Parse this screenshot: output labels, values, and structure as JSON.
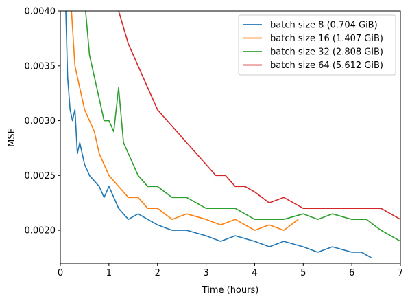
{
  "chart_data": {
    "type": "line",
    "title": "",
    "xlabel": "Time (hours)",
    "ylabel": "MSE",
    "xlim": [
      0,
      7
    ],
    "ylim": [
      0.0017,
      0.004
    ],
    "xticks": [
      0,
      1,
      2,
      3,
      4,
      5,
      6,
      7
    ],
    "xtick_labels": [
      "0",
      "1",
      "2",
      "3",
      "4",
      "5",
      "6",
      "7"
    ],
    "yticks": [
      0.002,
      0.0025,
      0.003,
      0.0035,
      0.004
    ],
    "ytick_labels": [
      "0.0020",
      "0.0025",
      "0.0030",
      "0.0035",
      "0.0040"
    ],
    "grid": false,
    "legend_position": "top-right",
    "series": [
      {
        "name": "batch size 8 (0.704 GiB)",
        "color": "#1f77b4",
        "x": [
          0.1,
          0.15,
          0.2,
          0.25,
          0.3,
          0.35,
          0.4,
          0.5,
          0.6,
          0.7,
          0.8,
          0.9,
          1.0,
          1.2,
          1.4,
          1.6,
          1.8,
          2.0,
          2.3,
          2.6,
          3.0,
          3.3,
          3.6,
          4.0,
          4.3,
          4.6,
          5.0,
          5.3,
          5.6,
          6.0,
          6.2,
          6.4
        ],
        "y": [
          0.0042,
          0.0034,
          0.0031,
          0.003,
          0.0031,
          0.0027,
          0.0028,
          0.0026,
          0.0025,
          0.00245,
          0.0024,
          0.0023,
          0.0024,
          0.0022,
          0.0021,
          0.00215,
          0.0021,
          0.00205,
          0.002,
          0.002,
          0.00195,
          0.0019,
          0.00195,
          0.0019,
          0.00185,
          0.0019,
          0.00185,
          0.0018,
          0.00185,
          0.0018,
          0.0018,
          0.00175
        ]
      },
      {
        "name": "batch size 16 (1.407 GiB)",
        "color": "#ff7f0e",
        "x": [
          0.2,
          0.3,
          0.4,
          0.5,
          0.6,
          0.7,
          0.8,
          0.9,
          1.0,
          1.2,
          1.4,
          1.6,
          1.8,
          2.0,
          2.3,
          2.6,
          3.0,
          3.3,
          3.6,
          4.0,
          4.3,
          4.6,
          4.9
        ],
        "y": [
          0.0042,
          0.0035,
          0.0033,
          0.0031,
          0.003,
          0.0029,
          0.0027,
          0.0026,
          0.0025,
          0.0024,
          0.0023,
          0.0023,
          0.0022,
          0.0022,
          0.0021,
          0.00215,
          0.0021,
          0.00205,
          0.0021,
          0.002,
          0.00205,
          0.002,
          0.0021
        ]
      },
      {
        "name": "batch size 32 (2.808 GiB)",
        "color": "#2ca02c",
        "x": [
          0.5,
          0.6,
          0.7,
          0.8,
          0.9,
          1.0,
          1.1,
          1.2,
          1.3,
          1.4,
          1.6,
          1.8,
          2.0,
          2.3,
          2.6,
          3.0,
          3.3,
          3.6,
          4.0,
          4.3,
          4.6,
          5.0,
          5.3,
          5.6,
          6.0,
          6.3,
          6.6,
          7.0
        ],
        "y": [
          0.0041,
          0.0036,
          0.0034,
          0.0032,
          0.003,
          0.003,
          0.0029,
          0.0033,
          0.0028,
          0.0027,
          0.0025,
          0.0024,
          0.0024,
          0.0023,
          0.0023,
          0.0022,
          0.0022,
          0.0022,
          0.0021,
          0.0021,
          0.0021,
          0.00215,
          0.0021,
          0.00215,
          0.0021,
          0.0021,
          0.002,
          0.0019
        ]
      },
      {
        "name": "batch size 64 (5.612 GiB)",
        "color": "#d62728",
        "x": [
          1.2,
          1.4,
          1.6,
          1.8,
          2.0,
          2.2,
          2.4,
          2.6,
          2.8,
          3.0,
          3.2,
          3.4,
          3.6,
          3.8,
          4.0,
          4.3,
          4.6,
          5.0,
          5.3,
          5.6,
          6.0,
          6.3,
          6.6,
          6.8,
          7.0
        ],
        "y": [
          0.004,
          0.0037,
          0.0035,
          0.0033,
          0.0031,
          0.003,
          0.0029,
          0.0028,
          0.0027,
          0.0026,
          0.0025,
          0.0025,
          0.0024,
          0.0024,
          0.00235,
          0.00225,
          0.0023,
          0.0022,
          0.0022,
          0.0022,
          0.0022,
          0.0022,
          0.0022,
          0.00215,
          0.0021
        ]
      }
    ]
  }
}
